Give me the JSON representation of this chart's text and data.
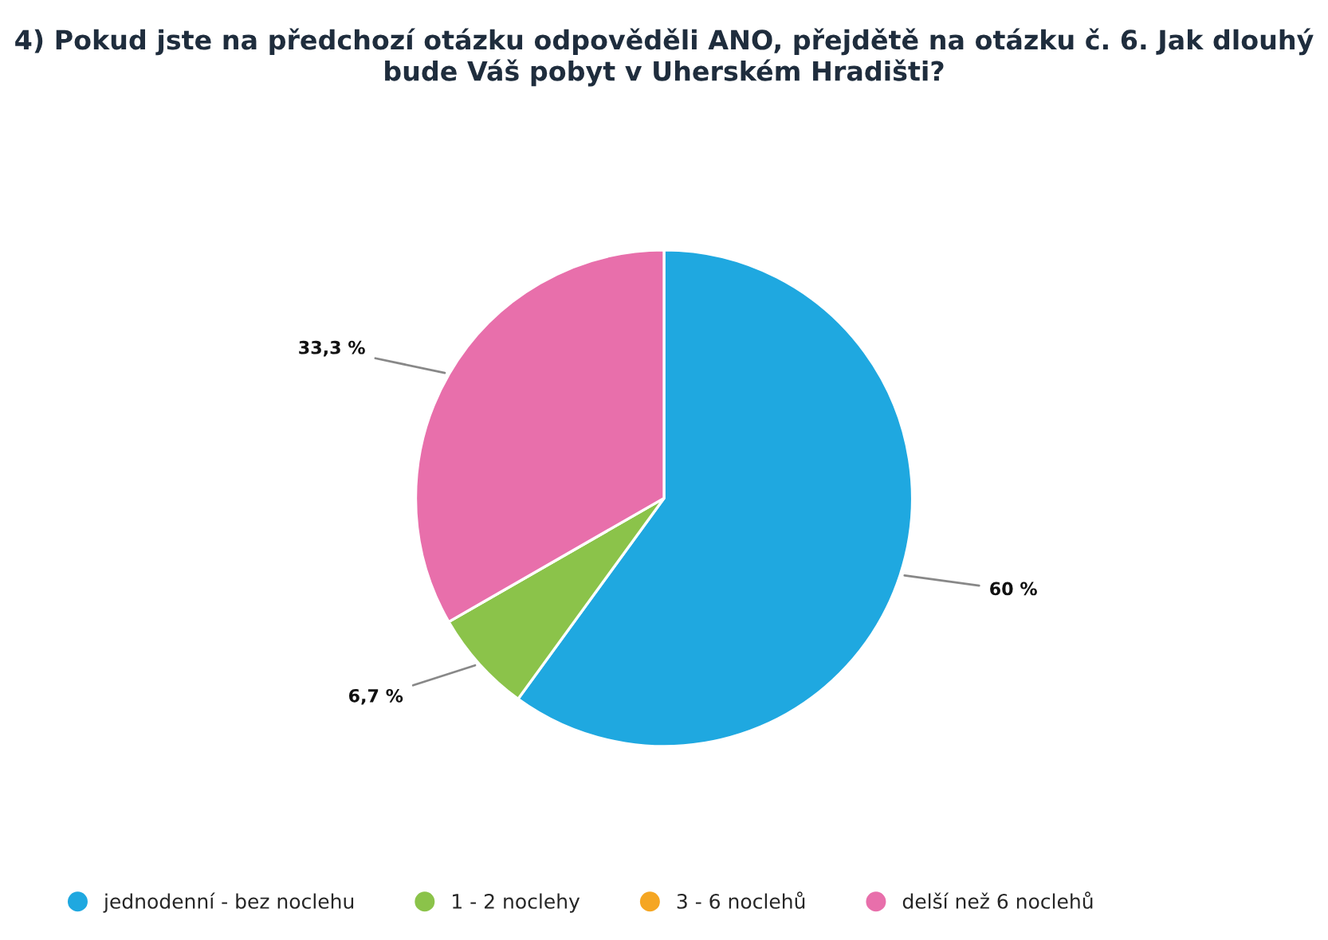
{
  "chart_data": {
    "type": "pie",
    "title": "4) Pokud jste na předchozí otázku odpověděli ANO, přejdětě na otázku č. 6. Jak dlouhý bude Váš pobyt v Uherském Hradišti?",
    "categories": [
      "jednodenní - bez noclehu",
      "1 - 2 noclehy",
      "3 - 6 noclehů",
      "delší než 6 noclehů"
    ],
    "values": [
      60,
      6.7,
      0,
      33.3
    ],
    "value_labels": [
      "60 %",
      "6,7 %",
      null,
      "33,3 %"
    ],
    "colors": [
      "#1fa8e0",
      "#8bc34a",
      "#f5a623",
      "#e86fab"
    ],
    "legend": "bottom left"
  }
}
